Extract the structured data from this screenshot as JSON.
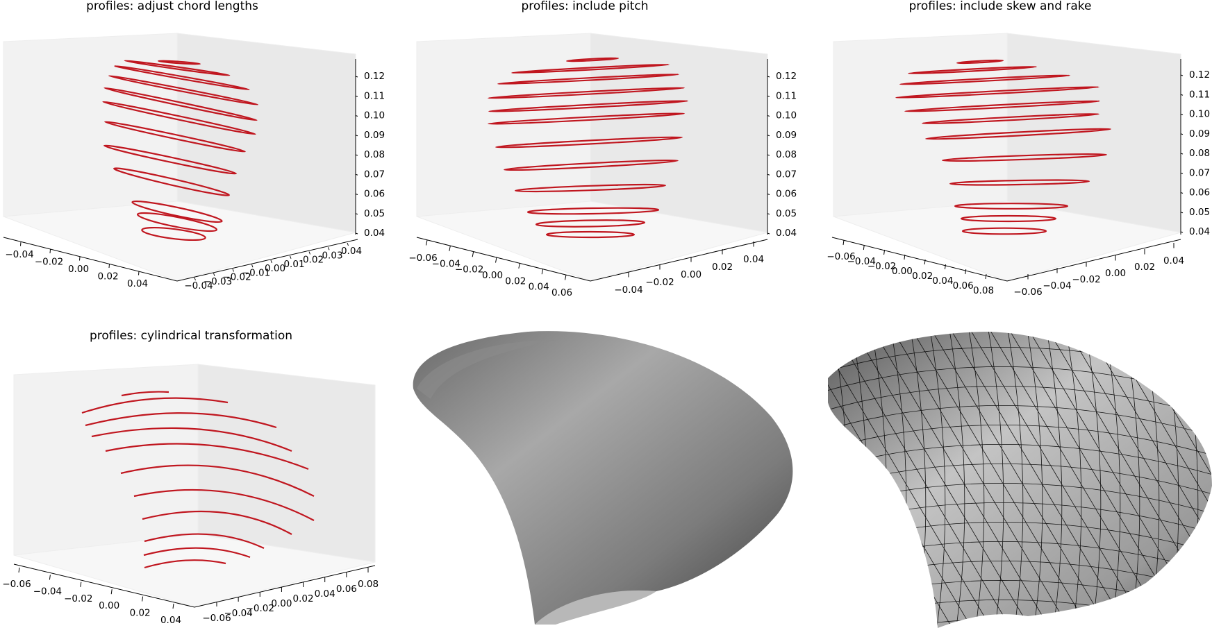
{
  "figure": {
    "panels": [
      {
        "id": "p1",
        "title": "profiles: adjust chord lengths"
      },
      {
        "id": "p2",
        "title": "profiles: include pitch"
      },
      {
        "id": "p3",
        "title": "profiles: include skew and rake"
      },
      {
        "id": "p4",
        "title": "profiles: cylindrical transformation"
      },
      {
        "id": "p5",
        "title": ""
      },
      {
        "id": "p6",
        "title": ""
      }
    ],
    "profile_color": "#c0161f",
    "surface_color": "#8a8a8a"
  },
  "chart_data": [
    {
      "type": "line",
      "title": "profiles: adjust chord lengths",
      "projection": "3d",
      "series_color": "#c0161f",
      "xticks": [
        "−0.04",
        "−0.02",
        "0.00",
        "0.02",
        "0.04"
      ],
      "yticks": [
        "−0.04",
        "−0.03",
        "−0.02",
        "−0.01",
        "0.00",
        "0.01",
        "0.02",
        "0.03",
        "0.04"
      ],
      "zticks": [
        "0.04",
        "0.05",
        "0.06",
        "0.07",
        "0.08",
        "0.09",
        "0.10",
        "0.11",
        "0.12"
      ],
      "zlim": [
        0.035,
        0.125
      ],
      "section_count": 12
    },
    {
      "type": "line",
      "title": "profiles: include pitch",
      "projection": "3d",
      "series_color": "#c0161f",
      "xticks": [
        "−0.06",
        "−0.04",
        "−0.02",
        "0.00",
        "0.02",
        "0.04",
        "0.06"
      ],
      "yticks": [
        "−0.04",
        "−0.02",
        "0.00",
        "0.02",
        "0.04"
      ],
      "zticks": [
        "0.04",
        "0.05",
        "0.06",
        "0.07",
        "0.08",
        "0.09",
        "0.10",
        "0.11",
        "0.12"
      ],
      "zlim": [
        0.035,
        0.125
      ],
      "section_count": 12
    },
    {
      "type": "line",
      "title": "profiles: include skew and rake",
      "projection": "3d",
      "series_color": "#c0161f",
      "xticks": [
        "−0.06",
        "−0.04",
        "−0.02",
        "0.00",
        "0.02",
        "0.04",
        "0.06",
        "0.08"
      ],
      "yticks": [
        "−0.06",
        "−0.04",
        "−0.02",
        "0.00",
        "0.02",
        "0.04"
      ],
      "zticks": [
        "0.04",
        "0.05",
        "0.06",
        "0.07",
        "0.08",
        "0.09",
        "0.10",
        "0.11",
        "0.12"
      ],
      "zlim": [
        0.035,
        0.125
      ],
      "section_count": 12
    },
    {
      "type": "line",
      "title": "profiles: cylindrical transformation",
      "projection": "3d",
      "series_color": "#c0161f",
      "xticks": [
        "−0.06",
        "−0.04",
        "−0.02",
        "0.00",
        "0.02",
        "0.04"
      ],
      "yticks": [
        "−0.06",
        "−0.04",
        "−0.02",
        "0.00",
        "0.02",
        "0.04",
        "0.06",
        "0.08"
      ],
      "section_count": 12
    },
    {
      "type": "surface",
      "title": "",
      "style": "smooth"
    },
    {
      "type": "surface",
      "title": "",
      "style": "triangulated mesh"
    }
  ]
}
